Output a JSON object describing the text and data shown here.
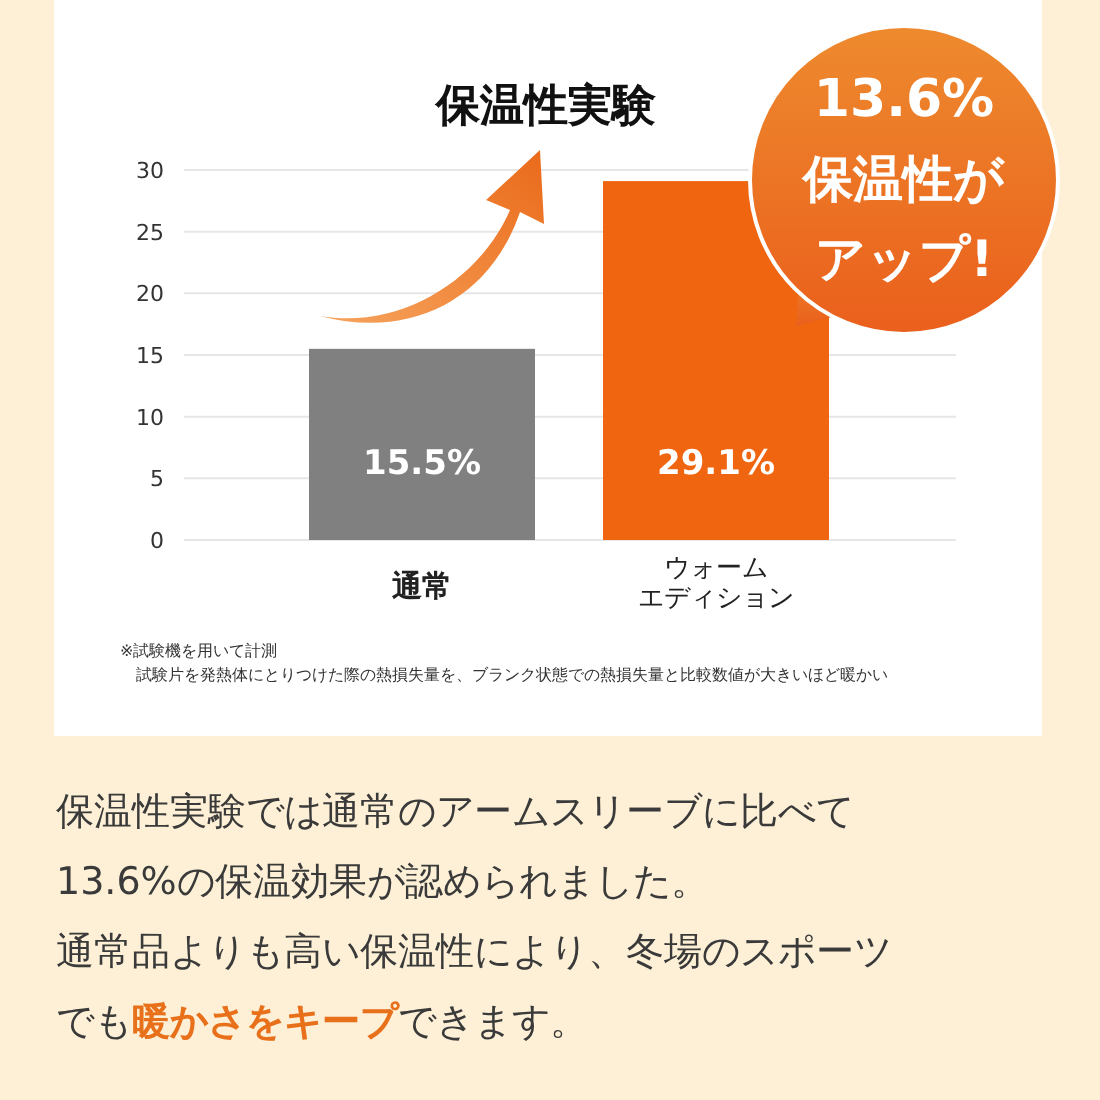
{
  "chart_data": {
    "type": "bar",
    "title": "保温性実験",
    "categories": [
      "通常",
      "ウォームエディション"
    ],
    "values": [
      15.5,
      29.1
    ],
    "colors": [
      "#808080",
      "#f0650f"
    ],
    "value_labels": [
      "15.5%",
      "29.1%"
    ],
    "ylim": [
      0,
      30
    ],
    "yticks": [
      0,
      5,
      10,
      15,
      20,
      25,
      30
    ],
    "grid": "y",
    "annotations": [
      "13.6%",
      "保温性が",
      "アップ!",
      "※試験機を用いて計測",
      "試験片を発熱体にとりつけた際の熱損失量を、ブランク状態での熱損失量と比較数値が大きいほど暖かい",
      "保温性実験では通常のアームスリーブに比べて",
      "13.6%の保温効果が認められました。",
      "通常品よりも高い保温性により、冬場のスポーツ",
      "でも",
      "暖かさをキープ",
      "できます。"
    ]
  }
}
